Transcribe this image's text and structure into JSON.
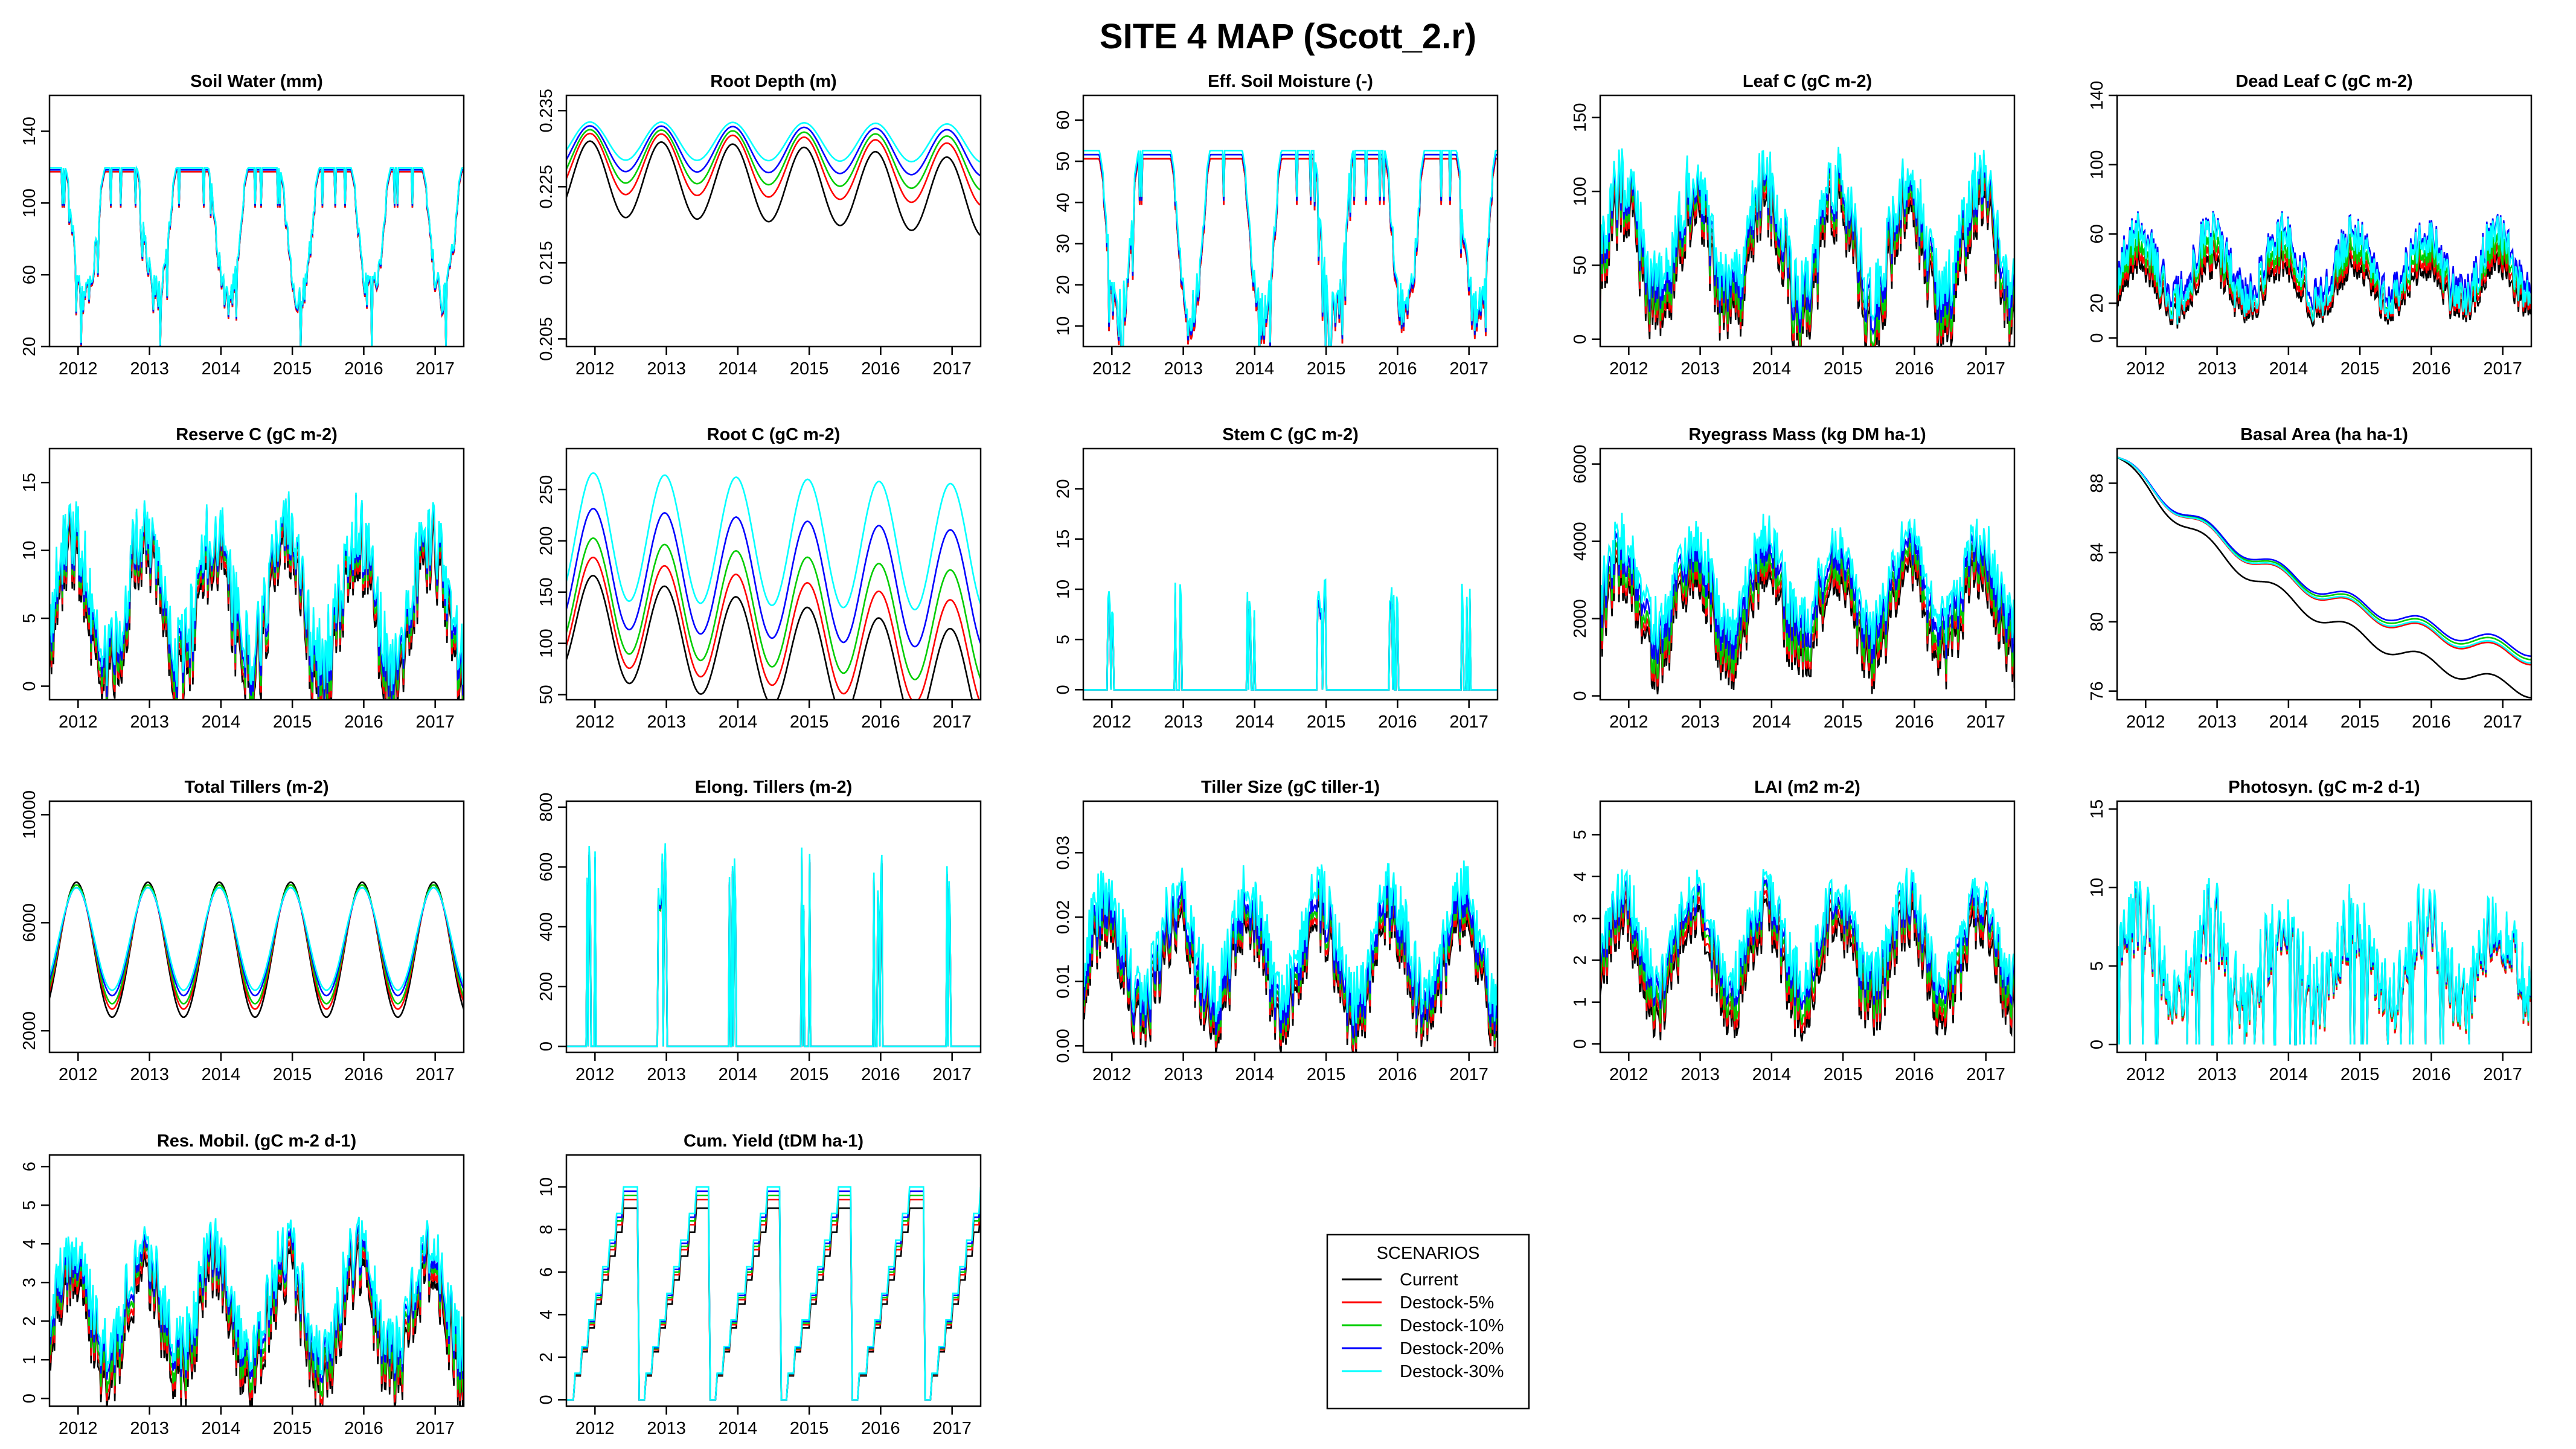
{
  "figure_title": "SITE 4 MAP (Scott_2.r)",
  "colors": {
    "Current": "#000000",
    "Destock-5%": "#ff0000",
    "Destock-10%": "#00cd00",
    "Destock-20%": "#0000ff",
    "Destock-30%": "#00ffff"
  },
  "legend": {
    "title": "SCENARIOS",
    "items": [
      "Current",
      "Destock-5%",
      "Destock-10%",
      "Destock-20%",
      "Destock-30%"
    ],
    "placement": "bottom-center"
  },
  "chart_data": [
    {
      "type": "line",
      "title": "Soil Water (mm)",
      "xrange": [
        2011.6,
        2017.4
      ],
      "xticks": [
        "2012",
        "2013",
        "2014",
        "2015",
        "2016",
        "2017"
      ],
      "ylim": [
        20,
        160
      ],
      "yticks": [
        "20",
        "60",
        "100",
        "140"
      ],
      "gen": "soilwater",
      "series": [
        {
          "name": "Current",
          "level": 95,
          "amp": 25
        },
        {
          "name": "Destock-5%",
          "level": 95,
          "amp": 25
        },
        {
          "name": "Destock-10%",
          "level": 96,
          "amp": 25
        },
        {
          "name": "Destock-20%",
          "level": 96,
          "amp": 25
        },
        {
          "name": "Destock-30%",
          "level": 97,
          "amp": 25
        }
      ]
    },
    {
      "type": "line",
      "title": "Root Depth (m)",
      "xrange": [
        2011.6,
        2017.4
      ],
      "xticks": [
        "2012",
        "2013",
        "2014",
        "2015",
        "2016",
        "2017"
      ],
      "ylim": [
        0.204,
        0.237
      ],
      "yticks": [
        "0.205",
        "0.215",
        "0.225",
        "0.235"
      ],
      "gen": "rootdepth",
      "series": [
        {
          "name": "Current",
          "level": 0.226,
          "amp": 0.005,
          "trend": -0.0025
        },
        {
          "name": "Destock-5%",
          "level": 0.228,
          "amp": 0.004,
          "trend": -0.0015
        },
        {
          "name": "Destock-10%",
          "level": 0.229,
          "amp": 0.0035,
          "trend": -0.001
        },
        {
          "name": "Destock-20%",
          "level": 0.23,
          "amp": 0.003,
          "trend": -0.0006
        },
        {
          "name": "Destock-30%",
          "level": 0.231,
          "amp": 0.0025,
          "trend": -0.0003
        }
      ]
    },
    {
      "type": "line",
      "title": "Eff. Soil Moisture (-)",
      "xrange": [
        2011.6,
        2017.4
      ],
      "xticks": [
        "2012",
        "2013",
        "2014",
        "2015",
        "2016",
        "2017"
      ],
      "ylim": [
        5,
        66
      ],
      "yticks": [
        "10",
        "20",
        "30",
        "40",
        "50",
        "60"
      ],
      "gen": "soilwater",
      "series": [
        {
          "name": "Current",
          "level": 38,
          "amp": 14
        },
        {
          "name": "Destock-5%",
          "level": 38,
          "amp": 14
        },
        {
          "name": "Destock-10%",
          "level": 39,
          "amp": 14
        },
        {
          "name": "Destock-20%",
          "level": 39,
          "amp": 14
        },
        {
          "name": "Destock-30%",
          "level": 40,
          "amp": 14
        }
      ]
    },
    {
      "type": "line",
      "title": "Leaf C (gC m-2)",
      "xrange": [
        2011.6,
        2017.4
      ],
      "xticks": [
        "2012",
        "2013",
        "2014",
        "2015",
        "2016",
        "2017"
      ],
      "ylim": [
        -5,
        165
      ],
      "yticks": [
        "0",
        "50",
        "100",
        "150"
      ],
      "gen": "seasonal",
      "series": [
        {
          "name": "Current",
          "level": 50,
          "amp": 40
        },
        {
          "name": "Destock-5%",
          "level": 55,
          "amp": 40
        },
        {
          "name": "Destock-10%",
          "level": 60,
          "amp": 40
        },
        {
          "name": "Destock-20%",
          "level": 66,
          "amp": 38
        },
        {
          "name": "Destock-30%",
          "level": 72,
          "amp": 36
        }
      ]
    },
    {
      "type": "line",
      "title": "Dead Leaf C (gC m-2)",
      "xrange": [
        2011.6,
        2017.4
      ],
      "xticks": [
        "2012",
        "2013",
        "2014",
        "2015",
        "2016",
        "2017"
      ],
      "ylim": [
        -5,
        140
      ],
      "yticks": [
        "0",
        "20",
        "60",
        "100",
        "140"
      ],
      "gen": "seasonal",
      "series": [
        {
          "name": "Current",
          "level": 28,
          "amp": 14
        },
        {
          "name": "Destock-5%",
          "level": 32,
          "amp": 15
        },
        {
          "name": "Destock-10%",
          "level": 36,
          "amp": 16
        },
        {
          "name": "Destock-20%",
          "level": 44,
          "amp": 18
        },
        {
          "name": "Destock-30%",
          "level": 40,
          "amp": 20
        }
      ]
    },
    {
      "type": "line",
      "title": "Reserve C (gC m-2)",
      "xrange": [
        2011.6,
        2017.4
      ],
      "xticks": [
        "2012",
        "2013",
        "2014",
        "2015",
        "2016",
        "2017"
      ],
      "ylim": [
        -1,
        17.5
      ],
      "yticks": [
        "0",
        "5",
        "10",
        "15"
      ],
      "gen": "seasonal",
      "series": [
        {
          "name": "Current",
          "level": 5,
          "amp": 5
        },
        {
          "name": "Destock-5%",
          "level": 5.5,
          "amp": 5
        },
        {
          "name": "Destock-10%",
          "level": 6,
          "amp": 5
        },
        {
          "name": "Destock-20%",
          "level": 6.5,
          "amp": 4.8
        },
        {
          "name": "Destock-30%",
          "level": 7,
          "amp": 4.6
        }
      ]
    },
    {
      "type": "line",
      "title": "Root C (gC m-2)",
      "xrange": [
        2011.6,
        2017.4
      ],
      "xticks": [
        "2012",
        "2013",
        "2014",
        "2015",
        "2016",
        "2017"
      ],
      "ylim": [
        45,
        290
      ],
      "yticks": [
        "50",
        "100",
        "150",
        "200",
        "250"
      ],
      "gen": "smooth",
      "series": [
        {
          "name": "Current",
          "level": 120,
          "amp": 50,
          "trend": -10
        },
        {
          "name": "Destock-5%",
          "level": 135,
          "amp": 52,
          "trend": -8
        },
        {
          "name": "Destock-10%",
          "level": 150,
          "amp": 55,
          "trend": -6
        },
        {
          "name": "Destock-20%",
          "level": 175,
          "amp": 58,
          "trend": -4
        },
        {
          "name": "Destock-30%",
          "level": 205,
          "amp": 62,
          "trend": -2
        }
      ]
    },
    {
      "type": "line",
      "title": "Stem C (gC m-2)",
      "xrange": [
        2011.6,
        2017.4
      ],
      "xticks": [
        "2012",
        "2013",
        "2014",
        "2015",
        "2016",
        "2017"
      ],
      "ylim": [
        -1,
        24
      ],
      "yticks": [
        "0",
        "5",
        "10",
        "15",
        "20"
      ],
      "gen": "spikes",
      "series": [
        {
          "name": "Current",
          "level": 0,
          "amp": 10
        },
        {
          "name": "Destock-5%",
          "level": 0,
          "amp": 10
        },
        {
          "name": "Destock-10%",
          "level": 0,
          "amp": 10
        },
        {
          "name": "Destock-20%",
          "level": 0,
          "amp": 10
        },
        {
          "name": "Destock-30%",
          "level": 0,
          "amp": 11
        }
      ]
    },
    {
      "type": "line",
      "title": "Ryegrass Mass (kg DM ha-1)",
      "xrange": [
        2011.6,
        2017.4
      ],
      "xticks": [
        "2012",
        "2013",
        "2014",
        "2015",
        "2016",
        "2017"
      ],
      "ylim": [
        -100,
        6400
      ],
      "yticks": [
        "0",
        "2000",
        "4000",
        "6000"
      ],
      "gen": "seasonal",
      "series": [
        {
          "name": "Current",
          "level": 2000,
          "amp": 1200
        },
        {
          "name": "Destock-5%",
          "level": 2200,
          "amp": 1200
        },
        {
          "name": "Destock-10%",
          "level": 2400,
          "amp": 1200
        },
        {
          "name": "Destock-20%",
          "level": 2700,
          "amp": 1150
        },
        {
          "name": "Destock-30%",
          "level": 3000,
          "amp": 1100
        }
      ]
    },
    {
      "type": "line",
      "title": "Basal Area (ha ha-1)",
      "xrange": [
        2011.6,
        2017.4
      ],
      "xticks": [
        "2012",
        "2013",
        "2014",
        "2015",
        "2016",
        "2017"
      ],
      "ylim": [
        75.5,
        90
      ],
      "yticks": [
        "76",
        "80",
        "84",
        "88"
      ],
      "gen": "decline",
      "series": [
        {
          "name": "Current",
          "level": 89.5,
          "amp": 0,
          "trend": -13.5
        },
        {
          "name": "Destock-5%",
          "level": 89.5,
          "amp": 0,
          "trend": -11.6
        },
        {
          "name": "Destock-10%",
          "level": 89.5,
          "amp": 0,
          "trend": -11.3
        },
        {
          "name": "Destock-20%",
          "level": 89.5,
          "amp": 0,
          "trend": -11.1
        },
        {
          "name": "Destock-30%",
          "level": 89.5,
          "amp": 0,
          "trend": -11.5
        }
      ]
    },
    {
      "type": "line",
      "title": "Total Tillers (m-2)",
      "xrange": [
        2011.6,
        2017.4
      ],
      "xticks": [
        "2012",
        "2013",
        "2014",
        "2015",
        "2016",
        "2017"
      ],
      "ylim": [
        1200,
        10500
      ],
      "yticks": [
        "2000",
        "6000",
        "10000"
      ],
      "gen": "smooth",
      "series": [
        {
          "name": "Current",
          "level": 5000,
          "amp": 2500,
          "trend": 0
        },
        {
          "name": "Destock-5%",
          "level": 5100,
          "amp": 2300,
          "trend": 0
        },
        {
          "name": "Destock-10%",
          "level": 5200,
          "amp": 2200,
          "trend": 0
        },
        {
          "name": "Destock-20%",
          "level": 5300,
          "amp": 2000,
          "trend": 0
        },
        {
          "name": "Destock-30%",
          "level": 5400,
          "amp": 1900,
          "trend": 0
        }
      ]
    },
    {
      "type": "line",
      "title": "Elong. Tillers (m-2)",
      "xrange": [
        2011.6,
        2017.4
      ],
      "xticks": [
        "2012",
        "2013",
        "2014",
        "2015",
        "2016",
        "2017"
      ],
      "ylim": [
        -20,
        820
      ],
      "yticks": [
        "0",
        "200",
        "400",
        "600",
        "800"
      ],
      "gen": "spikes",
      "series": [
        {
          "name": "Current",
          "level": 0,
          "amp": 650
        },
        {
          "name": "Destock-5%",
          "level": 0,
          "amp": 650
        },
        {
          "name": "Destock-10%",
          "level": 0,
          "amp": 650
        },
        {
          "name": "Destock-20%",
          "level": 0,
          "amp": 660
        },
        {
          "name": "Destock-30%",
          "level": 0,
          "amp": 680
        }
      ]
    },
    {
      "type": "line",
      "title": "Tiller Size (gC tiller-1)",
      "xrange": [
        2011.6,
        2017.4
      ],
      "xticks": [
        "2012",
        "2013",
        "2014",
        "2015",
        "2016",
        "2017"
      ],
      "ylim": [
        -0.001,
        0.038
      ],
      "yticks": [
        "0.00",
        "0.01",
        "0.02",
        "0.03"
      ],
      "gen": "seasonal",
      "series": [
        {
          "name": "Current",
          "level": 0.011,
          "amp": 0.008
        },
        {
          "name": "Destock-5%",
          "level": 0.012,
          "amp": 0.008
        },
        {
          "name": "Destock-10%",
          "level": 0.013,
          "amp": 0.008
        },
        {
          "name": "Destock-20%",
          "level": 0.014,
          "amp": 0.008
        },
        {
          "name": "Destock-30%",
          "level": 0.016,
          "amp": 0.008
        }
      ]
    },
    {
      "type": "line",
      "title": "LAI (m2 m-2)",
      "xrange": [
        2011.6,
        2017.4
      ],
      "xticks": [
        "2012",
        "2013",
        "2014",
        "2015",
        "2016",
        "2017"
      ],
      "ylim": [
        -0.2,
        5.8
      ],
      "yticks": [
        "0",
        "1",
        "2",
        "3",
        "4",
        "5"
      ],
      "gen": "seasonal",
      "series": [
        {
          "name": "Current",
          "level": 1.8,
          "amp": 1.1
        },
        {
          "name": "Destock-5%",
          "level": 2.0,
          "amp": 1.1
        },
        {
          "name": "Destock-10%",
          "level": 2.2,
          "amp": 1.1
        },
        {
          "name": "Destock-20%",
          "level": 2.4,
          "amp": 1.0
        },
        {
          "name": "Destock-30%",
          "level": 2.6,
          "amp": 1.0
        }
      ]
    },
    {
      "type": "line",
      "title": "Photosyn. (gC m-2 d-1)",
      "xrange": [
        2011.6,
        2017.4
      ],
      "xticks": [
        "2012",
        "2013",
        "2014",
        "2015",
        "2016",
        "2017"
      ],
      "ylim": [
        -0.5,
        15.5
      ],
      "yticks": [
        "0",
        "5",
        "10",
        "15"
      ],
      "gen": "photo",
      "series": [
        {
          "name": "Current",
          "level": 5,
          "amp": 4
        },
        {
          "name": "Destock-5%",
          "level": 5,
          "amp": 4
        },
        {
          "name": "Destock-10%",
          "level": 5.2,
          "amp": 4
        },
        {
          "name": "Destock-20%",
          "level": 5.3,
          "amp": 4
        },
        {
          "name": "Destock-30%",
          "level": 5.5,
          "amp": 4.2
        }
      ]
    },
    {
      "type": "line",
      "title": "Res. Mobil. (gC m-2 d-1)",
      "xrange": [
        2011.6,
        2017.4
      ],
      "xticks": [
        "2012",
        "2013",
        "2014",
        "2015",
        "2016",
        "2017"
      ],
      "ylim": [
        -0.2,
        6.3
      ],
      "yticks": [
        "0",
        "1",
        "2",
        "3",
        "4",
        "5",
        "6"
      ],
      "gen": "seasonal",
      "series": [
        {
          "name": "Current",
          "level": 1.8,
          "amp": 1.4
        },
        {
          "name": "Destock-5%",
          "level": 2.0,
          "amp": 1.4
        },
        {
          "name": "Destock-10%",
          "level": 2.2,
          "amp": 1.4
        },
        {
          "name": "Destock-20%",
          "level": 2.4,
          "amp": 1.3
        },
        {
          "name": "Destock-30%",
          "level": 2.6,
          "amp": 1.3
        }
      ]
    },
    {
      "type": "line",
      "title": "Cum. Yield (tDM ha-1)",
      "xrange": [
        2011.6,
        2017.4
      ],
      "xticks": [
        "2012",
        "2013",
        "2014",
        "2015",
        "2016",
        "2017"
      ],
      "ylim": [
        -0.3,
        11.5
      ],
      "yticks": [
        "0",
        "2",
        "4",
        "6",
        "8",
        "10"
      ],
      "gen": "cumyield",
      "series": [
        {
          "name": "Current",
          "level": 9.0,
          "amp": 0
        },
        {
          "name": "Destock-5%",
          "level": 9.4,
          "amp": 0
        },
        {
          "name": "Destock-10%",
          "level": 9.6,
          "amp": 0
        },
        {
          "name": "Destock-20%",
          "level": 9.8,
          "amp": 0
        },
        {
          "name": "Destock-30%",
          "level": 10.0,
          "amp": 0
        }
      ]
    }
  ]
}
